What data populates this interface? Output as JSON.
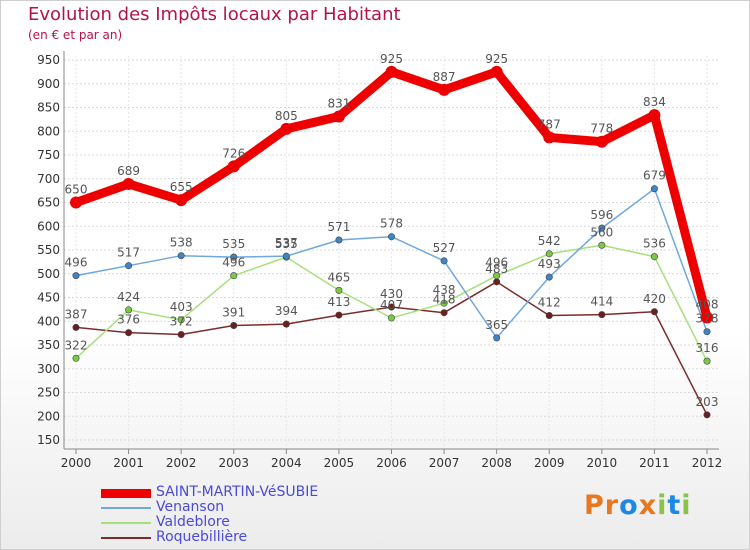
{
  "header": {
    "title": "Evolution des Impôts locaux par Habitant",
    "subtitle": "(en € et par an)"
  },
  "logo": {
    "text": "Proxiti",
    "colors": [
      "#e87722",
      "#1e88e5",
      "#8bc34a"
    ]
  },
  "chart_data": {
    "type": "line",
    "title": "Evolution des Impôts locaux par Habitant",
    "subtitle": "(en € et par an)",
    "xlabel": "",
    "ylabel": "",
    "x": [
      2000,
      2001,
      2002,
      2003,
      2004,
      2005,
      2006,
      2007,
      2008,
      2009,
      2010,
      2011,
      2012
    ],
    "ylim": [
      150,
      950
    ],
    "yticks": [
      150,
      200,
      250,
      300,
      350,
      400,
      450,
      500,
      550,
      600,
      650,
      700,
      750,
      800,
      850,
      900,
      950
    ],
    "grid": "horizontal",
    "legend": "bottom-left",
    "series": [
      {
        "name": "SAINT-MARTIN-VéSUBIE",
        "color": "#ee0000",
        "marker": "#ee0000",
        "width": 9,
        "values": [
          650,
          689,
          655,
          726,
          805,
          831,
          925,
          887,
          925,
          787,
          778,
          834,
          408
        ]
      },
      {
        "name": "Venanson",
        "color": "#6fa8dc",
        "marker": "#3d85c6",
        "width": 1.5,
        "values": [
          496,
          517,
          538,
          535,
          537,
          571,
          578,
          527,
          365,
          493,
          596,
          679,
          378
        ]
      },
      {
        "name": "Valdeblore",
        "color": "#a6e07a",
        "marker": "#7ac943",
        "width": 1.5,
        "values": [
          322,
          424,
          403,
          496,
          535,
          465,
          407,
          438,
          496,
          542,
          560,
          536,
          316
        ]
      },
      {
        "name": "Roquebillière",
        "color": "#7b2c2c",
        "marker": "#6b1f1f",
        "width": 1.5,
        "values": [
          387,
          376,
          372,
          391,
          394,
          413,
          430,
          418,
          483,
          412,
          414,
          420,
          203
        ]
      }
    ]
  }
}
